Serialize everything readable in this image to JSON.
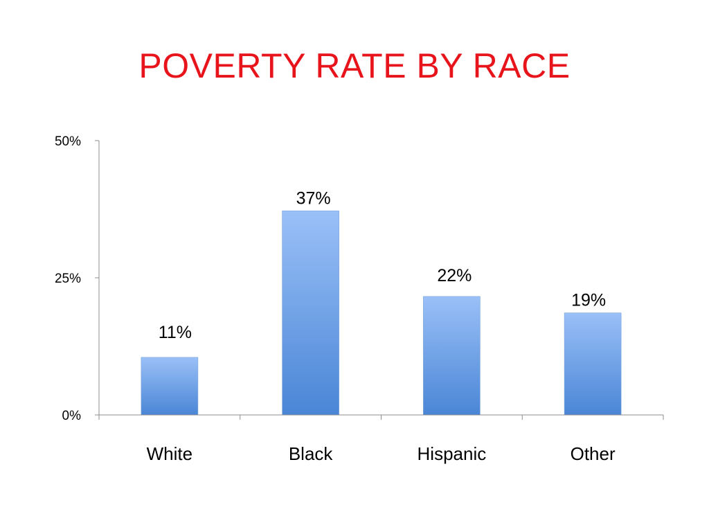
{
  "slide": {
    "title": "POVERTY RATE BY RACE",
    "title_color": "#e8141b"
  },
  "chart_data": {
    "type": "bar",
    "title": "POVERTY RATE BY RACE",
    "categories": [
      "White",
      "Black",
      "Hispanic",
      "Other"
    ],
    "values": [
      11,
      37,
      22,
      19
    ],
    "bar_values_estimated": [
      10.5,
      37.2,
      21.6,
      18.6
    ],
    "data_labels": [
      "11%",
      "37%",
      "22%",
      "19%"
    ],
    "ylim": [
      0,
      50
    ],
    "yticks": [
      0,
      25,
      50
    ],
    "ytick_labels": [
      "0%",
      "25%",
      "50%"
    ],
    "xlabel": "",
    "ylabel": "",
    "grid": false,
    "legend": "none",
    "bar_color_top": "#9ac0f7",
    "bar_color_bottom": "#4a86d6"
  }
}
